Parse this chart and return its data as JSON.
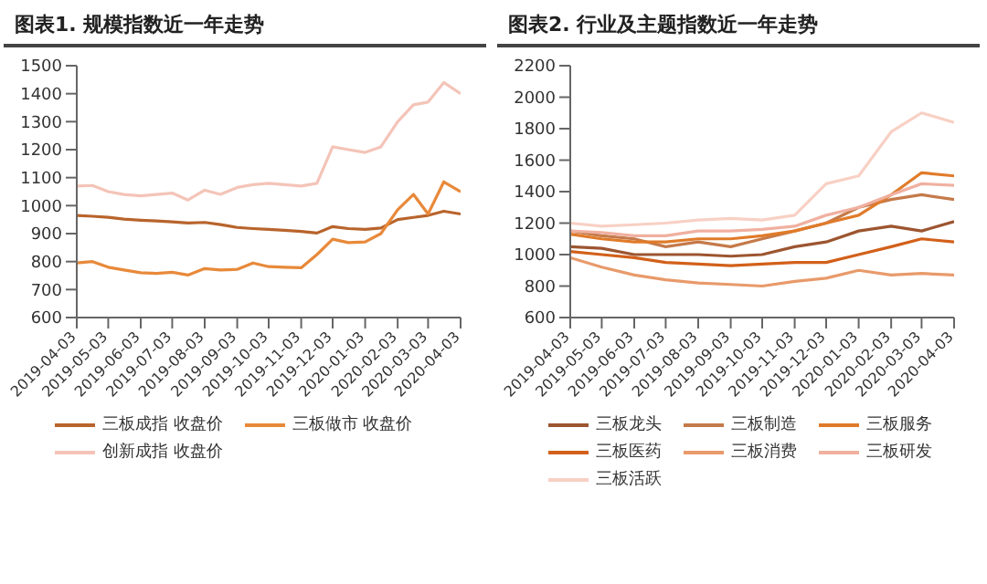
{
  "chart_data": [
    {
      "type": "line",
      "title": "图表1. 规模指数近一年走势",
      "x": [
        "2019-04-03",
        "2019-04-18",
        "2019-05-03",
        "2019-05-18",
        "2019-06-03",
        "2019-06-18",
        "2019-07-03",
        "2019-07-18",
        "2019-08-03",
        "2019-08-18",
        "2019-09-03",
        "2019-09-18",
        "2019-10-03",
        "2019-10-18",
        "2019-11-03",
        "2019-11-18",
        "2019-12-03",
        "2019-12-18",
        "2020-01-03",
        "2020-01-18",
        "2020-02-03",
        "2020-02-18",
        "2020-03-03",
        "2020-03-18",
        "2020-04-03"
      ],
      "series": [
        {
          "name": "三板成指 收盘价",
          "color": "#b8642c",
          "values": [
            965,
            962,
            958,
            952,
            948,
            945,
            942,
            938,
            940,
            932,
            922,
            918,
            915,
            912,
            908,
            902,
            925,
            918,
            915,
            920,
            950,
            958,
            965,
            980,
            970
          ]
        },
        {
          "name": "三板做市 收盘价",
          "color": "#e8893a",
          "values": [
            795,
            800,
            780,
            770,
            760,
            758,
            762,
            752,
            775,
            770,
            772,
            795,
            782,
            780,
            778,
            825,
            880,
            868,
            870,
            900,
            985,
            1040,
            970,
            1085,
            1050
          ]
        },
        {
          "name": "创新成指 收盘价",
          "color": "#f4c4b8",
          "values": [
            1070,
            1072,
            1050,
            1040,
            1035,
            1040,
            1045,
            1020,
            1055,
            1040,
            1065,
            1075,
            1080,
            1075,
            1070,
            1080,
            1210,
            1200,
            1190,
            1210,
            1300,
            1360,
            1370,
            1440,
            1400
          ]
        }
      ],
      "xlim": [
        "2019-04-03",
        "2020-04-03"
      ],
      "xticks": [
        "2019-04-03",
        "2019-05-03",
        "2019-06-03",
        "2019-07-03",
        "2019-08-03",
        "2019-09-03",
        "2019-10-03",
        "2019-11-03",
        "2019-12-03",
        "2020-01-03",
        "2020-02-03",
        "2020-03-03",
        "2020-04-03"
      ],
      "ylim": [
        600,
        1500
      ],
      "yticks": [
        600,
        700,
        800,
        900,
        1000,
        1100,
        1200,
        1300,
        1400,
        1500
      ],
      "legend": "bottom",
      "marker": "none",
      "line_style": "solid"
    },
    {
      "type": "line",
      "title": "图表2. 行业及主题指数近一年走势",
      "x": [
        "2019-04-03",
        "2019-05-03",
        "2019-06-03",
        "2019-07-03",
        "2019-08-03",
        "2019-09-03",
        "2019-10-03",
        "2019-11-03",
        "2019-12-03",
        "2020-01-03",
        "2020-02-03",
        "2020-03-03",
        "2020-04-03"
      ],
      "series": [
        {
          "name": "三板龙头",
          "color": "#9c5530",
          "values": [
            1050,
            1040,
            1000,
            1000,
            1000,
            990,
            1000,
            1050,
            1080,
            1150,
            1180,
            1150,
            1210
          ]
        },
        {
          "name": "三板制造",
          "color": "#c47a4a",
          "values": [
            1150,
            1120,
            1100,
            1050,
            1080,
            1050,
            1100,
            1150,
            1200,
            1300,
            1350,
            1380,
            1350
          ]
        },
        {
          "name": "三板服务",
          "color": "#e07b2a",
          "values": [
            1130,
            1100,
            1080,
            1080,
            1100,
            1100,
            1120,
            1150,
            1200,
            1250,
            1380,
            1520,
            1500
          ]
        },
        {
          "name": "三板医药",
          "color": "#d2601a",
          "values": [
            1020,
            1000,
            980,
            950,
            940,
            930,
            940,
            950,
            950,
            1000,
            1050,
            1100,
            1080
          ]
        },
        {
          "name": "三板消费",
          "color": "#e89a6a",
          "values": [
            980,
            920,
            870,
            840,
            820,
            810,
            800,
            830,
            850,
            900,
            870,
            880,
            870
          ]
        },
        {
          "name": "三板研发",
          "color": "#f0b0a0",
          "values": [
            1150,
            1140,
            1120,
            1120,
            1150,
            1150,
            1160,
            1180,
            1250,
            1300,
            1380,
            1450,
            1440
          ]
        },
        {
          "name": "三板活跃",
          "color": "#f8d0c4",
          "values": [
            1200,
            1180,
            1190,
            1200,
            1220,
            1230,
            1220,
            1250,
            1450,
            1500,
            1780,
            1900,
            1840
          ]
        }
      ],
      "xlim": [
        "2019-04-03",
        "2020-04-03"
      ],
      "xticks": [
        "2019-04-03",
        "2019-05-03",
        "2019-06-03",
        "2019-07-03",
        "2019-08-03",
        "2019-09-03",
        "2019-10-03",
        "2019-11-03",
        "2019-12-03",
        "2020-01-03",
        "2020-02-03",
        "2020-03-03",
        "2020-04-03"
      ],
      "ylim": [
        600,
        2200
      ],
      "yticks": [
        600,
        800,
        1000,
        1200,
        1400,
        1600,
        1800,
        2000,
        2200
      ],
      "legend": "bottom",
      "marker": "none",
      "line_style": "solid"
    }
  ]
}
